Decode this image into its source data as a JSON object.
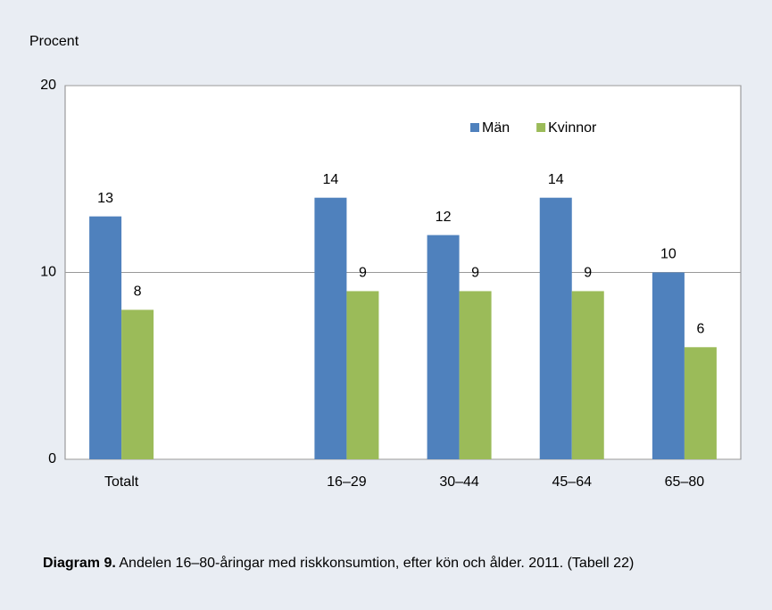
{
  "chart_data": {
    "type": "bar",
    "y_label": "Procent",
    "categories": [
      "Totalt",
      null,
      "16–29",
      "30–44",
      "45–64",
      "65–80"
    ],
    "series": [
      {
        "name": "Män",
        "color": "#4f81bd",
        "values": [
          13,
          null,
          14,
          12,
          14,
          10
        ]
      },
      {
        "name": "Kvinnor",
        "color": "#9bbb59",
        "values": [
          8,
          null,
          9,
          9,
          9,
          6
        ]
      }
    ],
    "ylim": [
      0,
      20
    ],
    "yticks": [
      0,
      10,
      20
    ],
    "grid": true,
    "legend": "top-right",
    "caption": {
      "label": "Diagram 9.",
      "text": "Andelen 16–80-åringar med riskkonsumtion, efter kön och ålder. 2011. (Tabell 22)"
    }
  }
}
